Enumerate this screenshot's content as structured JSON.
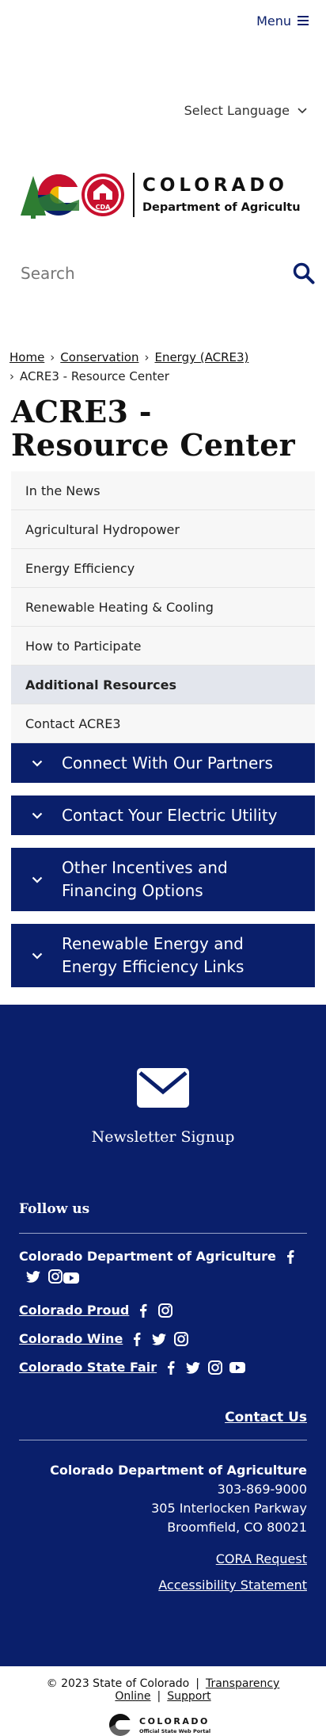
{
  "header": {
    "menu_label": "Menu",
    "language_label": "Select Language",
    "logo_text_main": "COLORADO",
    "logo_text_sub": "Department of Agriculture",
    "logo_badge": "CDA",
    "search_placeholder": "Search"
  },
  "breadcrumb": {
    "items": [
      "Home",
      "Conservation",
      "Energy (ACRE3)",
      "ACRE3 - Resource Center"
    ]
  },
  "page": {
    "title": "ACRE3 - Resource Center"
  },
  "sidenav": {
    "items": [
      {
        "label": "In the News"
      },
      {
        "label": "Agricultural Hydropower"
      },
      {
        "label": "Energy Efficiency"
      },
      {
        "label": "Renewable Heating & Cooling"
      },
      {
        "label": "How to Participate"
      },
      {
        "label": "Additional Resources",
        "active": true
      },
      {
        "label": "Contact ACRE3"
      }
    ]
  },
  "accordions": [
    {
      "label": "Connect With Our Partners"
    },
    {
      "label": "Contact Your Electric Utility"
    },
    {
      "label": "Other Incentives and Financing Options"
    },
    {
      "label": "Renewable Energy and Energy Efficiency Links"
    }
  ],
  "footer": {
    "newsletter_label": "Newsletter Signup",
    "follow_title": "Follow us",
    "social": [
      {
        "name": "Colorado Department of Agriculture",
        "icons": [
          "facebook-icon",
          "twitter-icon",
          "instagram-icon",
          "youtube-icon"
        ]
      },
      {
        "name": "Colorado Proud",
        "icons": [
          "facebook-icon",
          "instagram-icon"
        ]
      },
      {
        "name": "Colorado Wine",
        "icons": [
          "facebook-icon",
          "twitter-icon",
          "instagram-icon"
        ]
      },
      {
        "name": "Colorado State Fair",
        "icons": [
          "facebook-icon",
          "twitter-icon",
          "instagram-icon",
          "youtube-icon"
        ]
      }
    ],
    "contact_link": "Contact Us",
    "org": "Colorado Department of Agriculture",
    "phone": "303-869-9000",
    "address1": "305 Interlocken Parkway",
    "address2": "Broomfield, CO 80021",
    "cora_link": "CORA Request",
    "accessibility_link": "Accessibility Statement"
  },
  "bottom": {
    "copyright": "© 2023 State of Colorado",
    "transparency_link": "Transparency Online",
    "support_link": "Support",
    "portal_name": "COLORADO",
    "portal_sub": "Official State Web Portal"
  },
  "colors": {
    "brand_navy": "#0a1f6b",
    "footer_navy": "#0a1f6b",
    "logo_red": "#c8102e",
    "logo_yellow": "#f2b705",
    "logo_green": "#2e7d32"
  }
}
